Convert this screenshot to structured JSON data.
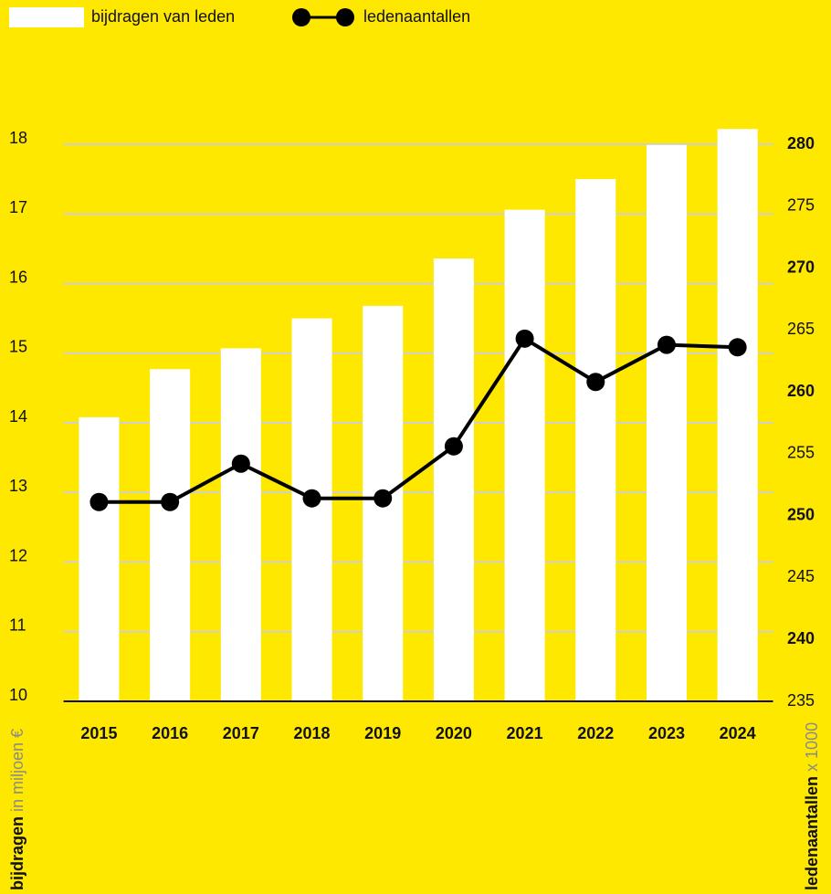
{
  "chart_data": {
    "type": "bar_line",
    "categories": [
      "2015",
      "2016",
      "2017",
      "2018",
      "2019",
      "2020",
      "2021",
      "2022",
      "2023",
      "2024"
    ],
    "series": [
      {
        "name": "bijdragen van leden",
        "type": "bar",
        "color": "#ffffff",
        "values": [
          14.08,
          14.77,
          15.07,
          15.5,
          15.68,
          16.36,
          17.06,
          17.5,
          17.99,
          18.22
        ]
      },
      {
        "name": "ledenaantallen",
        "type": "line",
        "axis": "y2",
        "color": "#000000",
        "values": [
          251.1,
          251.1,
          254.2,
          251.4,
          251.4,
          255.6,
          264.3,
          260.8,
          263.8,
          263.6
        ]
      }
    ],
    "ylim": [
      10,
      18.4
    ],
    "yticks": [
      10,
      11,
      12,
      13,
      14,
      15,
      16,
      17,
      18
    ],
    "y2lim": [
      235,
      282.25
    ],
    "y2ticks": [
      235,
      240,
      245,
      250,
      255,
      260,
      265,
      270,
      275,
      280
    ],
    "y_label": {
      "bold": "bijdragen",
      "rest": "in miljoen €"
    },
    "y2_label": {
      "bold": "ledenaantallen",
      "rest": "x 1000"
    },
    "grid": true,
    "legend": "top-left",
    "background": "#ffe800"
  }
}
